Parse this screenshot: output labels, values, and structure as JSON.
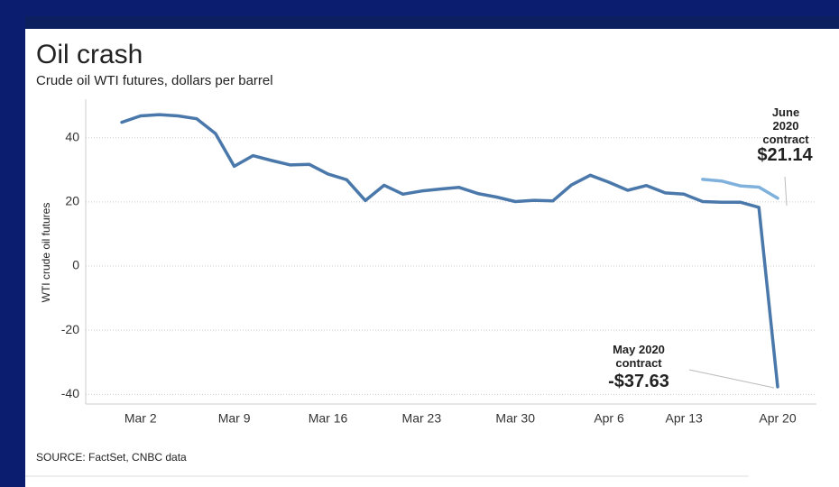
{
  "chart_data": {
    "type": "line",
    "title": "Oil crash",
    "subtitle": "Crude oil WTI futures, dollars per barrel",
    "y_label": "WTI crude oil futures",
    "source": "SOURCE: FactSet, CNBC data",
    "categories": [
      null,
      "Mar 2",
      null,
      null,
      null,
      null,
      "Mar 9",
      null,
      null,
      null,
      null,
      "Mar 16",
      null,
      null,
      null,
      null,
      "Mar 23",
      null,
      null,
      null,
      null,
      "Mar 30",
      null,
      null,
      null,
      null,
      "Apr 6",
      null,
      null,
      null,
      "Apr 13",
      null,
      null,
      null,
      null,
      "Apr 20"
    ],
    "series": [
      {
        "name": "May 2020 contract",
        "color": "#4a78aa",
        "values": [
          44.8,
          46.8,
          47.2,
          46.8,
          45.9,
          41.3,
          31.1,
          34.4,
          32.9,
          31.5,
          31.7,
          28.7,
          26.9,
          20.4,
          25.2,
          22.4,
          23.4,
          24.0,
          24.5,
          22.6,
          21.5,
          20.1,
          20.5,
          20.3,
          25.3,
          28.3,
          26.1,
          23.6,
          25.1,
          22.8,
          22.4,
          20.1,
          19.9,
          19.9,
          18.3,
          -37.63
        ],
        "value_labels": [
          null,
          null,
          null,
          null,
          null,
          null,
          null,
          null,
          null,
          null,
          null,
          null,
          null,
          null,
          null,
          null,
          null,
          null,
          null,
          null,
          null,
          null,
          null,
          null,
          null,
          null,
          null,
          null,
          null,
          null,
          null,
          null,
          null,
          null,
          null,
          "-$37.63"
        ]
      },
      {
        "name": "June 2020 contract",
        "color": "#7fb1dc",
        "values": [
          null,
          null,
          null,
          null,
          null,
          null,
          null,
          null,
          null,
          null,
          null,
          null,
          null,
          null,
          null,
          null,
          null,
          null,
          null,
          null,
          null,
          null,
          null,
          null,
          null,
          null,
          null,
          null,
          null,
          null,
          null,
          27.0,
          26.5,
          25.0,
          24.6,
          21.14
        ],
        "value_labels": [
          null,
          null,
          null,
          null,
          null,
          null,
          null,
          null,
          null,
          null,
          null,
          null,
          null,
          null,
          null,
          null,
          null,
          null,
          null,
          null,
          null,
          null,
          null,
          null,
          null,
          null,
          null,
          null,
          null,
          null,
          null,
          null,
          null,
          null,
          null,
          "$21.14"
        ]
      }
    ],
    "ylim": [
      -43,
      52
    ],
    "yticks": [
      40,
      20,
      0,
      -20,
      -40
    ],
    "grid": true
  }
}
